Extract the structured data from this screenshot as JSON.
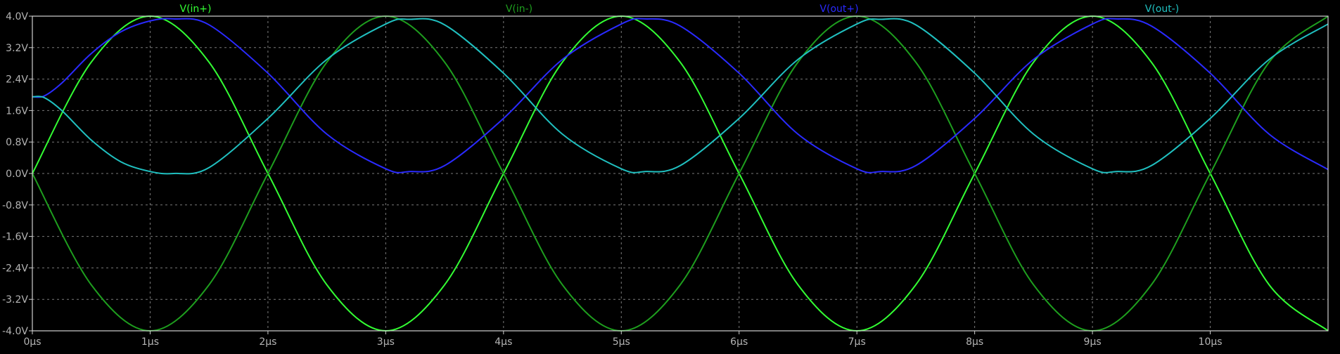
{
  "chart_data": {
    "type": "line",
    "title": "",
    "xlabel": "",
    "ylabel": "",
    "background": "#000000",
    "grid": true,
    "xlim": [
      0,
      11
    ],
    "ylim": [
      -4.0,
      4.0
    ],
    "x_ticks": [
      {
        "value": 0,
        "label": "0µs"
      },
      {
        "value": 1,
        "label": "1µs"
      },
      {
        "value": 2,
        "label": "2µs"
      },
      {
        "value": 3,
        "label": "3µs"
      },
      {
        "value": 4,
        "label": "4µs"
      },
      {
        "value": 5,
        "label": "5µs"
      },
      {
        "value": 6,
        "label": "6µs"
      },
      {
        "value": 7,
        "label": "7µs"
      },
      {
        "value": 8,
        "label": "8µs"
      },
      {
        "value": 9,
        "label": "9µs"
      },
      {
        "value": 10,
        "label": "10µs"
      }
    ],
    "y_ticks": [
      {
        "value": 4.0,
        "label": "4.0V"
      },
      {
        "value": 3.2,
        "label": "3.2V"
      },
      {
        "value": 2.4,
        "label": "2.4V"
      },
      {
        "value": 1.6,
        "label": "1.6V"
      },
      {
        "value": 0.8,
        "label": "0.8V"
      },
      {
        "value": 0.0,
        "label": "0.0V"
      },
      {
        "value": -0.8,
        "label": "-0.8V"
      },
      {
        "value": -1.6,
        "label": "-1.6V"
      },
      {
        "value": -2.4,
        "label": "-2.4V"
      },
      {
        "value": -3.2,
        "label": "-3.2V"
      },
      {
        "value": -4.0,
        "label": "-4.0V"
      }
    ],
    "series": [
      {
        "name": "V(in+)",
        "color": "#33ff33",
        "x": [
          0,
          0.5,
          1,
          1.5,
          2,
          2.5,
          3,
          3.5,
          4,
          4.5,
          5,
          5.5,
          6,
          6.5,
          7,
          7.5,
          8,
          8.5,
          9,
          9.5,
          10,
          10.5,
          11
        ],
        "y": [
          0,
          2.83,
          4.0,
          2.83,
          0,
          -2.83,
          -4.0,
          -2.83,
          0,
          2.83,
          4.0,
          2.83,
          0,
          -2.83,
          -4.0,
          -2.83,
          0,
          2.83,
          4.0,
          2.83,
          0,
          -2.83,
          -4.0
        ]
      },
      {
        "name": "V(in-)",
        "color": "#1e9e1e",
        "x": [
          0,
          0.5,
          1,
          1.5,
          2,
          2.5,
          3,
          3.5,
          4,
          4.5,
          5,
          5.5,
          6,
          6.5,
          7,
          7.5,
          8,
          8.5,
          9,
          9.5,
          10,
          10.5,
          11
        ],
        "y": [
          0,
          -2.83,
          -4.0,
          -2.83,
          0,
          2.83,
          4.0,
          2.83,
          0,
          -2.83,
          -4.0,
          -2.83,
          0,
          2.83,
          4.0,
          2.83,
          0,
          -2.83,
          -4.0,
          -2.83,
          0,
          2.83,
          4.0
        ]
      },
      {
        "name": "V(out+)",
        "color": "#2a2aff",
        "x": [
          0,
          0.1,
          0.25,
          0.5,
          0.75,
          1,
          1.2,
          1.5,
          2,
          2.5,
          3,
          3.2,
          3.5,
          4,
          4.5,
          5,
          5.2,
          5.5,
          6,
          6.5,
          7,
          7.2,
          7.5,
          8,
          8.5,
          9,
          9.2,
          9.5,
          10,
          10.5,
          11
        ],
        "y": [
          1.95,
          1.97,
          2.3,
          3.05,
          3.6,
          3.88,
          3.93,
          3.78,
          2.55,
          1.0,
          0.12,
          0.05,
          0.2,
          1.4,
          2.9,
          3.8,
          3.93,
          3.75,
          2.55,
          1.0,
          0.12,
          0.05,
          0.2,
          1.4,
          2.9,
          3.8,
          3.93,
          3.75,
          2.55,
          1.0,
          0.1
        ]
      },
      {
        "name": "V(out-)",
        "color": "#20c0c0",
        "x": [
          0,
          0.1,
          0.25,
          0.5,
          0.75,
          1,
          1.2,
          1.5,
          2,
          2.5,
          3,
          3.2,
          3.5,
          4,
          4.5,
          5,
          5.2,
          5.5,
          6,
          6.5,
          7,
          7.2,
          7.5,
          8,
          8.5,
          9,
          9.2,
          9.5,
          10,
          10.5,
          11
        ],
        "y": [
          1.95,
          1.93,
          1.6,
          0.85,
          0.3,
          0.05,
          0.0,
          0.15,
          1.4,
          2.9,
          3.8,
          3.92,
          3.78,
          2.55,
          1.0,
          0.12,
          0.05,
          0.2,
          1.4,
          2.9,
          3.8,
          3.92,
          3.78,
          2.55,
          1.0,
          0.12,
          0.05,
          0.2,
          1.4,
          2.9,
          3.8
        ]
      }
    ]
  }
}
